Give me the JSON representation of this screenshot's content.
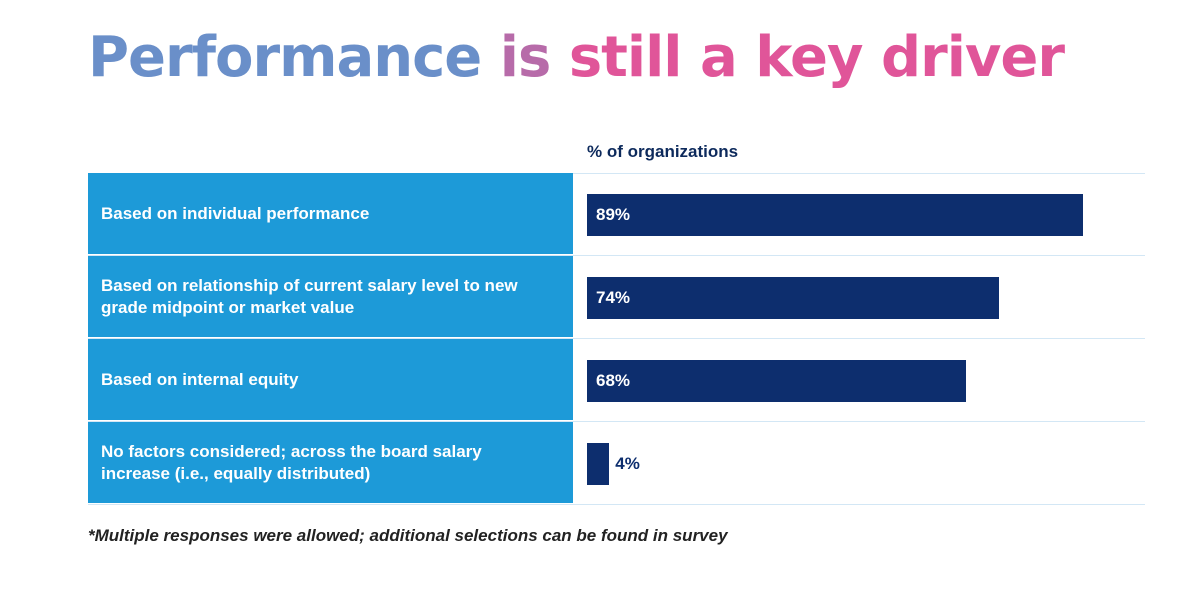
{
  "title": {
    "word1": "Performance",
    "word2": "is",
    "word3": "still a key driver"
  },
  "chart_data": {
    "type": "bar",
    "orientation": "horizontal",
    "title": "Performance is still a key driver",
    "xlabel": "% of organizations",
    "categories": [
      "Based on individual performance",
      "Based on relationship of current salary level to new grade midpoint or market value",
      "Based on internal equity",
      "No factors considered; across the board salary increase (i.e., equally distributed)"
    ],
    "values": [
      89,
      74,
      68,
      4
    ],
    "value_labels": [
      "89%",
      "74%",
      "68%",
      "4%"
    ],
    "xlim": [
      0,
      100
    ],
    "grid": false,
    "legend": "none",
    "colors": {
      "bar": "#0d2e6e",
      "label_panel": "#1d9ad8",
      "bar_label_inside": "#ffffff",
      "bar_label_outside": "#0d2e6e"
    }
  },
  "footnote": "*Multiple responses were allowed; additional selections can be found in survey"
}
